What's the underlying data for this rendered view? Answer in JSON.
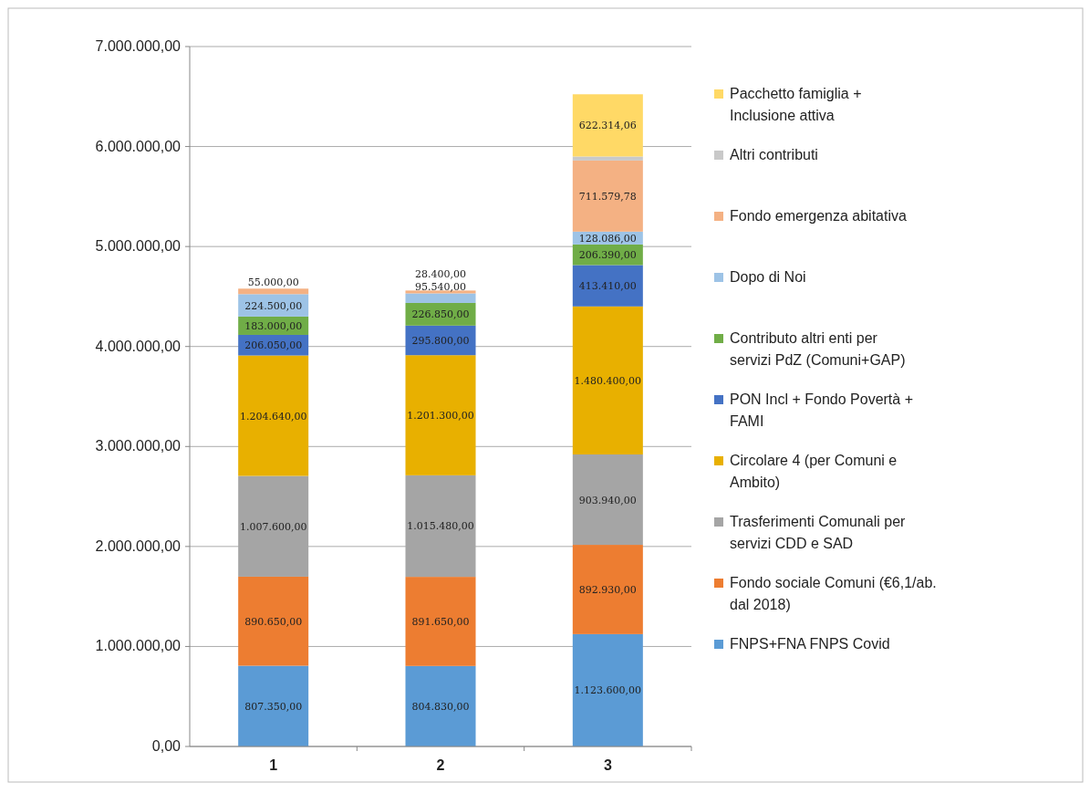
{
  "chart_data": {
    "type": "bar",
    "stacked": true,
    "categories": [
      "1",
      "2",
      "3"
    ],
    "series": [
      {
        "name": "FNPS+FNA FNPS Covid",
        "color": "#5b9bd5",
        "values": [
          807350,
          804830,
          1123600
        ],
        "value_labels": [
          "807.350,00",
          "804.830,00",
          "1.123.600,00"
        ]
      },
      {
        "name": "Fondo sociale Comuni (€6,1/ab. dal 2018)",
        "color": "#ed7d31",
        "values": [
          890650,
          891650,
          892930
        ],
        "value_labels": [
          "890.650,00",
          "891.650,00",
          "892.930,00"
        ]
      },
      {
        "name": "Trasferimenti Comunali per servizi CDD e SAD",
        "color": "#a5a5a5",
        "values": [
          1007600,
          1015480,
          903940
        ],
        "value_labels": [
          "1.007.600,00",
          "1.015.480,00",
          "903.940,00"
        ]
      },
      {
        "name": "Circolare 4 (per Comuni e Ambito)",
        "color": "#e8b000",
        "values": [
          1204640,
          1201300,
          1480400
        ],
        "value_labels": [
          "1.204.640,00",
          "1.201.300,00",
          "1.480.400,00"
        ]
      },
      {
        "name": "PON Incl + Fondo Povertà + FAMI",
        "color": "#4472c4",
        "values": [
          206050,
          295800,
          413410
        ],
        "value_labels": [
          "206.050,00",
          "295.800,00",
          "413.410,00"
        ]
      },
      {
        "name": "Contributo altri enti per servizi PdZ (Comuni+GAP)",
        "color": "#70ad47",
        "values": [
          183000,
          226850,
          206390
        ],
        "value_labels": [
          "183.000,00",
          "226.850,00",
          "206.390,00"
        ]
      },
      {
        "name": "Dopo di Noi",
        "color": "#9dc3e6",
        "values": [
          224500,
          95540,
          128086
        ],
        "value_labels": [
          "224.500,00",
          "95.540,00",
          "128.086,00"
        ]
      },
      {
        "name": "Fondo emergenza abitativa",
        "color": "#f4b183",
        "values": [
          55000,
          28400,
          711579.78
        ],
        "value_labels": [
          "55.000,00",
          "28.400,00",
          "711.579,78"
        ]
      },
      {
        "name": "Altri contributi",
        "color": "#c9c9c9",
        "values": [
          null,
          null,
          40000
        ],
        "value_labels": [
          null,
          null,
          null
        ]
      },
      {
        "name": "Pacchetto famiglia + Inclusione attiva",
        "color": "#ffd966",
        "values": [
          null,
          null,
          622314.06
        ],
        "value_labels": [
          null,
          null,
          "622.314,06"
        ]
      }
    ],
    "ylim": [
      0,
      7000000
    ],
    "yticks": [
      {
        "value": 0,
        "label": "0,00"
      },
      {
        "value": 1000000,
        "label": "1.000.000,00"
      },
      {
        "value": 2000000,
        "label": "2.000.000,00"
      },
      {
        "value": 3000000,
        "label": "3.000.000,00"
      },
      {
        "value": 4000000,
        "label": "4.000.000,00"
      },
      {
        "value": 5000000,
        "label": "5.000.000,00"
      },
      {
        "value": 6000000,
        "label": "6.000.000,00"
      },
      {
        "value": 7000000,
        "label": "7.000.000,00"
      }
    ],
    "grid": "y",
    "legend": "right"
  }
}
